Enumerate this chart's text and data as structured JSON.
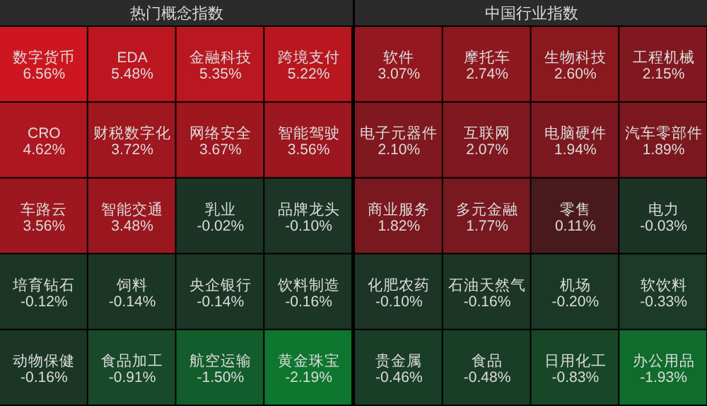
{
  "chart_data": [
    {
      "type": "other",
      "title": "热门概念指数",
      "categories": [
        "数字货币",
        "EDA",
        "金融科技",
        "跨境支付",
        "CRO",
        "财税数字化",
        "网络安全",
        "智能驾驶",
        "车路云",
        "智能交通",
        "乳业",
        "品牌龙头",
        "培育钻石",
        "饲料",
        "央企银行",
        "饮料制造",
        "动物保健",
        "食品加工",
        "航空运输",
        "黄金珠宝"
      ],
      "values": [
        6.56,
        5.48,
        5.35,
        5.22,
        4.62,
        3.72,
        3.67,
        3.56,
        3.56,
        3.48,
        -0.02,
        -0.1,
        -0.12,
        -0.14,
        -0.14,
        -0.16,
        -0.16,
        -0.91,
        -1.5,
        -2.19
      ],
      "value_labels": [
        "6.56%",
        "5.48%",
        "5.35%",
        "5.22%",
        "4.62%",
        "3.72%",
        "3.67%",
        "3.56%",
        "3.56%",
        "3.48%",
        "-0.02%",
        "-0.10%",
        "-0.12%",
        "-0.14%",
        "-0.14%",
        "-0.16%",
        "-0.16%",
        "-0.91%",
        "-1.50%",
        "-2.19%"
      ]
    },
    {
      "type": "other",
      "title": "中国行业指数",
      "categories": [
        "软件",
        "摩托车",
        "生物科技",
        "工程机械",
        "电子元器件",
        "互联网",
        "电脑硬件",
        "汽车零部件",
        "商业服务",
        "多元金融",
        "零售",
        "电力",
        "化肥农药",
        "石油天然气",
        "机场",
        "软饮料",
        "贵金属",
        "食品",
        "日用化工",
        "办公用品"
      ],
      "values": [
        3.07,
        2.74,
        2.6,
        2.15,
        2.1,
        2.07,
        1.94,
        1.89,
        1.82,
        1.77,
        0.11,
        -0.03,
        -0.1,
        -0.16,
        -0.2,
        -0.33,
        -0.46,
        -0.48,
        -0.83,
        -1.93
      ],
      "value_labels": [
        "3.07%",
        "2.74%",
        "2.60%",
        "2.15%",
        "2.10%",
        "2.07%",
        "1.94%",
        "1.89%",
        "1.82%",
        "1.77%",
        "0.11%",
        "-0.03%",
        "-0.10%",
        "-0.16%",
        "-0.20%",
        "-0.33%",
        "-0.46%",
        "-0.48%",
        "-0.83%",
        "-1.93%"
      ]
    }
  ]
}
